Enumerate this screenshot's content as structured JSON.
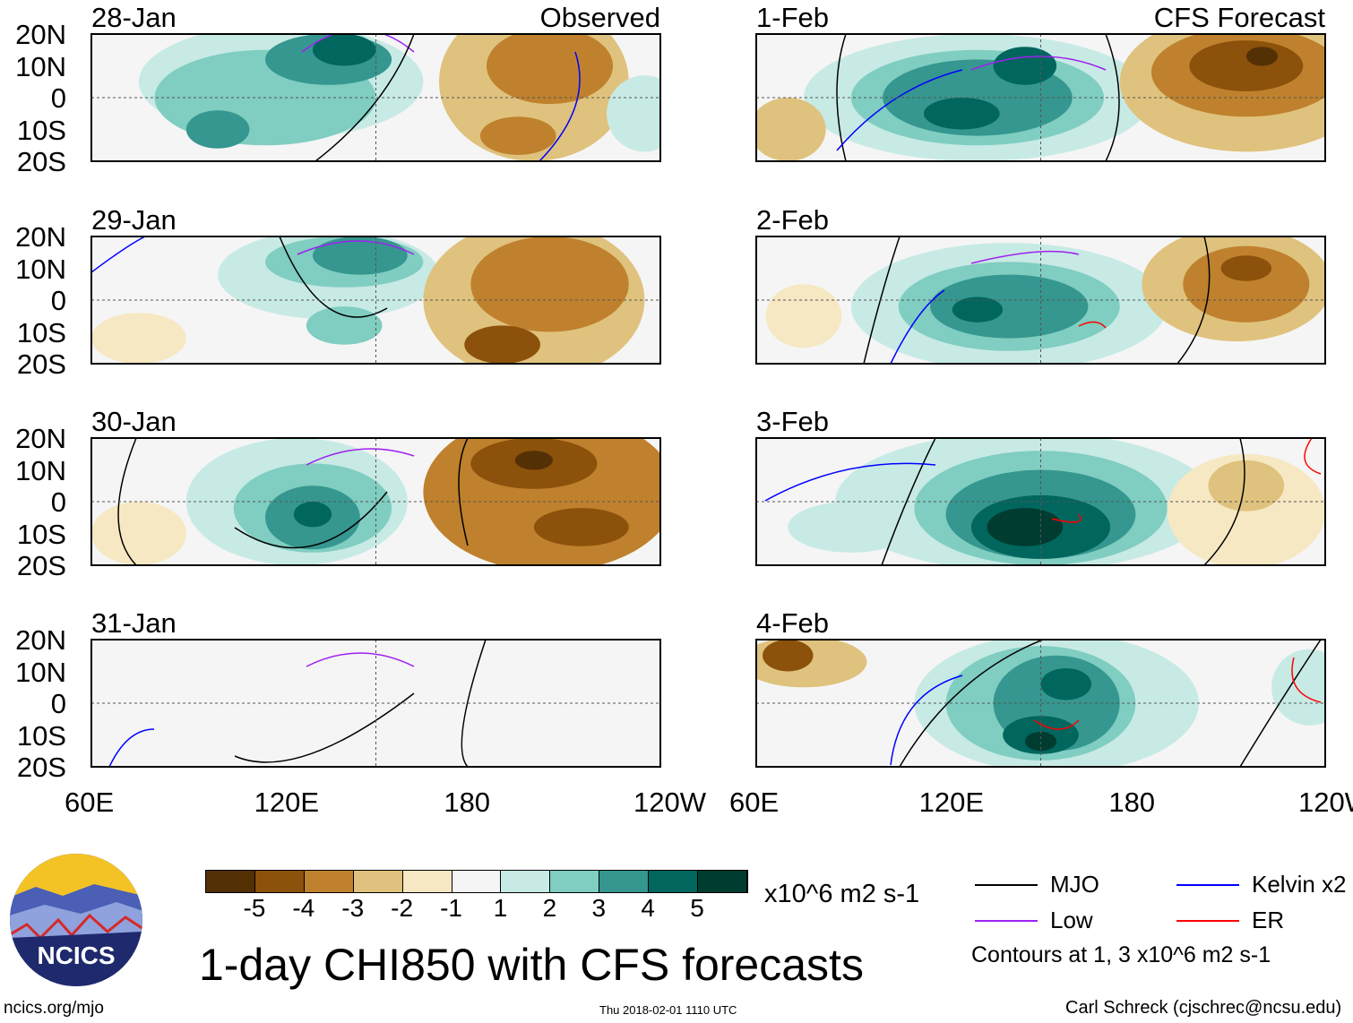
{
  "left_header": "Observed",
  "right_header": "CFS Forecast",
  "lat_labels": [
    "20N",
    "10N",
    "0",
    "10S",
    "20S"
  ],
  "lon_labels": [
    "60E",
    "120E",
    "180",
    "120W"
  ],
  "panels": [
    {
      "date": "28-Jan",
      "column": "observed"
    },
    {
      "date": "29-Jan",
      "column": "observed"
    },
    {
      "date": "30-Jan",
      "column": "observed"
    },
    {
      "date": "31-Jan",
      "column": "observed"
    },
    {
      "date": "1-Feb",
      "column": "forecast"
    },
    {
      "date": "2-Feb",
      "column": "forecast"
    },
    {
      "date": "3-Feb",
      "column": "forecast"
    },
    {
      "date": "4-Feb",
      "column": "forecast"
    }
  ],
  "colorbar": {
    "colors": [
      "#543005",
      "#8c510a",
      "#bf812d",
      "#dfc27d",
      "#f6e8c3",
      "#f5f5f5",
      "#c7eae5",
      "#80cdc1",
      "#35978f",
      "#01665e",
      "#003c30"
    ],
    "ticks": [
      "-5",
      "-4",
      "-3",
      "-2",
      "-1",
      "1",
      "2",
      "3",
      "4",
      "5"
    ],
    "units": "x10^6 m2 s-1"
  },
  "legend": {
    "items": [
      {
        "label": "MJO",
        "color": "#000000"
      },
      {
        "label": "Kelvin x2",
        "color": "#0000ff"
      },
      {
        "label": "Low",
        "color": "#a020f0"
      },
      {
        "label": "ER",
        "color": "#ff0000"
      }
    ],
    "note": "Contours at 1, 3 x10^6 m2 s-1"
  },
  "title": "1-day CHI850 with CFS forecasts",
  "logo_text": "NCICS",
  "footer_left": "ncics.org/mjo",
  "footer_center": "Thu 2018-02-01 1110 UTC",
  "footer_right": "Carl Schreck (cjschrec@ncsu.edu)"
}
